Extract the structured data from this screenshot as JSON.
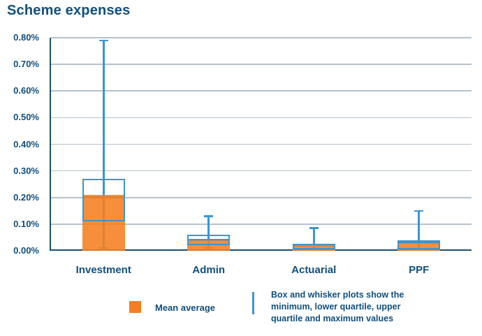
{
  "title": "Scheme expenses",
  "colors": {
    "text_navy": "#104f7d",
    "axis_navy": "#1c4e70",
    "gridline": "#b5c2cc",
    "orange": "#f57e20",
    "blue": "#3d95d0",
    "background": "#ffffff"
  },
  "chart_data": {
    "type": "box-whisker-with-mean-bars",
    "title": "Scheme expenses",
    "xlabel": "",
    "ylabel": "",
    "y_axis": {
      "unit": "%",
      "min": 0,
      "max": 0.8,
      "tick_step": 0.1,
      "tick_labels": [
        "0.80%",
        "0.70%",
        "0.60%",
        "0.50%",
        "0.40%",
        "0.30%",
        "0.20%",
        "0.10%",
        "0.00%"
      ]
    },
    "grid": true,
    "legend_position": "bottom",
    "categories": [
      "Investment",
      "Admin",
      "Actuarial",
      "PPF"
    ],
    "series": [
      {
        "name": "Investment",
        "mean": 0.21,
        "min": 0.01,
        "lower_quartile": 0.11,
        "median": 0.2,
        "upper_quartile": 0.27,
        "max": 0.79
      },
      {
        "name": "Admin",
        "mean": 0.04,
        "min": 0.01,
        "lower_quartile": 0.02,
        "median": 0.04,
        "upper_quartile": 0.06,
        "max": 0.13
      },
      {
        "name": "Actuarial",
        "mean": 0.02,
        "min": 0.005,
        "lower_quartile": 0.005,
        "median": 0.02,
        "upper_quartile": 0.025,
        "max": 0.085
      },
      {
        "name": "PPF",
        "mean": 0.03,
        "min": 0.005,
        "lower_quartile": 0.005,
        "median": 0.03,
        "upper_quartile": 0.04,
        "max": 0.15
      }
    ],
    "legend": {
      "mean_label": "Mean average",
      "note_lines": [
        "Box and whisker plots show the",
        "minimum, lower quartile, upper",
        "quartile and maximum values"
      ]
    }
  }
}
